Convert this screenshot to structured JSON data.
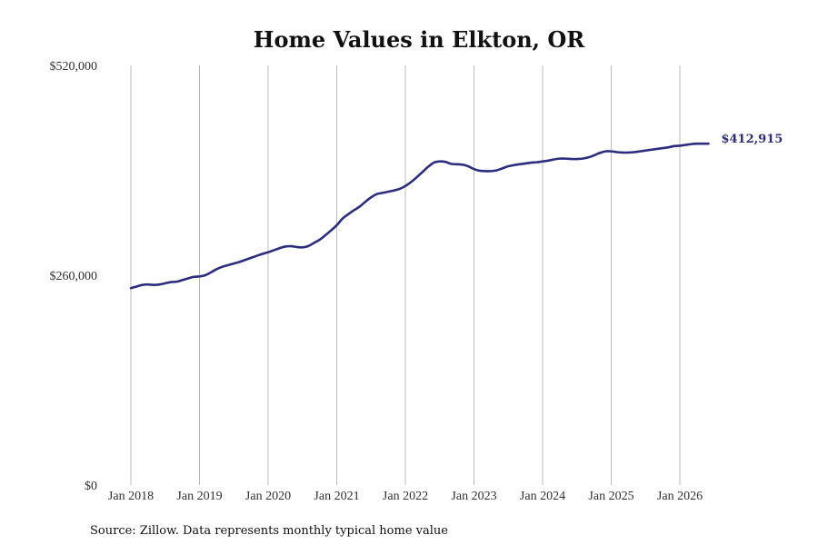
{
  "colors": {
    "line": "#2d2d7f",
    "grid": "#bdbdbd",
    "text": "#333333"
  },
  "chart_data": {
    "type": "line",
    "title": "Home Values in Elkton, OR",
    "source": "Source: Zillow. Data represents monthly typical home value",
    "end_label": "$412,915",
    "ylim": [
      0,
      520000
    ],
    "y_ticks": [
      {
        "value": 0,
        "label": "$0"
      },
      {
        "value": 260000,
        "label": "$260,000"
      },
      {
        "value": 520000,
        "label": "$520,000"
      }
    ],
    "x_ticks": [
      {
        "value": "2018-01",
        "label": "Jan 2018"
      },
      {
        "value": "2019-01",
        "label": "Jan 2019"
      },
      {
        "value": "2020-01",
        "label": "Jan 2020"
      },
      {
        "value": "2021-01",
        "label": "Jan 2021"
      },
      {
        "value": "2022-01",
        "label": "Jan 2022"
      },
      {
        "value": "2023-01",
        "label": "Jan 2023"
      },
      {
        "value": "2024-01",
        "label": "Jan 2024"
      },
      {
        "value": "2025-01",
        "label": "Jan 2025"
      },
      {
        "value": "2026-01",
        "label": "Jan 2026"
      }
    ],
    "grid": "vertical",
    "series": [
      {
        "x": [
          "2018-01",
          "2018-02",
          "2018-03",
          "2018-04",
          "2018-05",
          "2018-06",
          "2018-07",
          "2018-08",
          "2018-09",
          "2018-10",
          "2018-11",
          "2018-12",
          "2019-01",
          "2019-02",
          "2019-03",
          "2019-04",
          "2019-05",
          "2019-06",
          "2019-07",
          "2019-08",
          "2019-09",
          "2019-10",
          "2019-11",
          "2019-12",
          "2020-01",
          "2020-02",
          "2020-03",
          "2020-04",
          "2020-05",
          "2020-06",
          "2020-07",
          "2020-08",
          "2020-09",
          "2020-10",
          "2020-11",
          "2020-12",
          "2021-01",
          "2021-02",
          "2021-03",
          "2021-04",
          "2021-05",
          "2021-06",
          "2021-07",
          "2021-08",
          "2021-09",
          "2021-10",
          "2021-11",
          "2021-12",
          "2022-01",
          "2022-02",
          "2022-03",
          "2022-04",
          "2022-05",
          "2022-06",
          "2022-07",
          "2022-08",
          "2022-09",
          "2022-10",
          "2022-11",
          "2022-12",
          "2023-01",
          "2023-02",
          "2023-03",
          "2023-04",
          "2023-05",
          "2023-06",
          "2023-07",
          "2023-08",
          "2023-09",
          "2023-10",
          "2023-11",
          "2023-12",
          "2024-01",
          "2024-02",
          "2024-03",
          "2024-04",
          "2024-05",
          "2024-06",
          "2024-07",
          "2024-08",
          "2024-09",
          "2024-10",
          "2024-11",
          "2024-12",
          "2025-01",
          "2025-02",
          "2025-03",
          "2025-04",
          "2025-05",
          "2025-06",
          "2025-07",
          "2025-08",
          "2025-09",
          "2025-10",
          "2025-11",
          "2025-12",
          "2026-01",
          "2026-02",
          "2026-03",
          "2026-04",
          "2026-05",
          "2026-06"
        ],
        "values": [
          244000,
          246000,
          248000,
          248500,
          248000,
          248500,
          250000,
          251500,
          252000,
          254000,
          256000,
          258000,
          258500,
          260000,
          263500,
          267500,
          270500,
          272500,
          274500,
          276500,
          279000,
          281500,
          284000,
          286500,
          288500,
          291000,
          293500,
          295500,
          296000,
          295000,
          294500,
          296000,
          300000,
          304000,
          309500,
          315500,
          322000,
          330000,
          335500,
          340500,
          345000,
          351000,
          356500,
          360500,
          362000,
          363500,
          365000,
          367000,
          370500,
          375500,
          381500,
          388000,
          394500,
          399500,
          401000,
          400500,
          398000,
          397500,
          397000,
          395000,
          391500,
          389500,
          389000,
          389000,
          390000,
          392500,
          395000,
          396500,
          397500,
          398500,
          399500,
          400000,
          401000,
          402000,
          403500,
          404500,
          404500,
          404000,
          404000,
          404500,
          406000,
          408500,
          411500,
          413500,
          413500,
          412500,
          412000,
          412000,
          412500,
          413500,
          414500,
          415500,
          416500,
          417500,
          418500,
          420000,
          420500,
          421500,
          422500,
          423000,
          423000,
          412915
        ]
      }
    ]
  }
}
